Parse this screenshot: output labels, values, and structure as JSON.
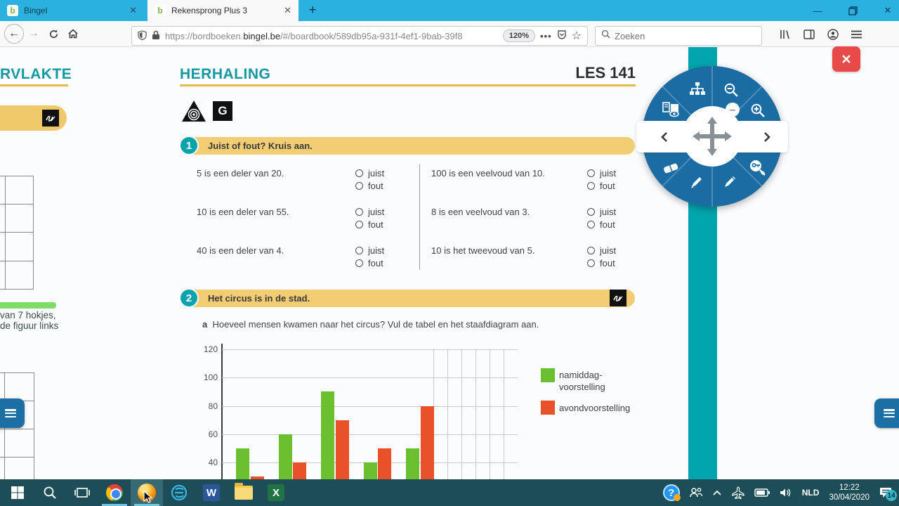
{
  "browser": {
    "tabs": [
      {
        "title": "Bingel"
      },
      {
        "title": "Rekensprong Plus 3"
      }
    ],
    "favicon_letter": "b",
    "new_tab_label": "+",
    "url": {
      "prefix": "https://bordboeken.",
      "domain": "bingel.be",
      "path": "/#/boardbook/589db95a-931f-4ef1-9bab-39f8"
    },
    "zoom_badge": "120%",
    "search_placeholder": "Zoeken"
  },
  "left_page": {
    "heading": "RVLAKTE",
    "note1": "van 7 hokjes,",
    "note2": "de figuur links"
  },
  "main": {
    "heading": "HERHALING",
    "lesson": "LES 141",
    "g_badge": "G",
    "ex1": {
      "number": "1",
      "title": "Juist of fout? Kruis aan.",
      "opt_true": "juist",
      "opt_false": "fout",
      "left_items": [
        "5 is een deler van 20.",
        "10 is een deler van 55.",
        "40 is een deler van 4."
      ],
      "right_items": [
        "100 is een veelvoud van 10.",
        "8 is een veelvoud van 3.",
        "10 is het tweevoud van 5."
      ]
    },
    "ex2": {
      "number": "2",
      "title": "Het circus is in de stad.",
      "item_label": "a",
      "item_text": "Hoeveel mensen kwamen naar het circus? Vul de tabel en het staafdiagram aan."
    }
  },
  "chart_data": {
    "type": "bar",
    "series": [
      {
        "name": "namiddag-voorstelling",
        "color": "#6cbf2e",
        "values": [
          50,
          60,
          90,
          40,
          50
        ]
      },
      {
        "name": "avondvoorstelling",
        "color": "#e9512b",
        "values": [
          30,
          40,
          70,
          50,
          80
        ]
      }
    ],
    "y_ticks": [
      120,
      100,
      80,
      60,
      40
    ],
    "ylim": [
      0,
      120
    ],
    "x_axis_labels_visible": false,
    "empty_fill_in_columns": 6,
    "grid": true,
    "legend_position": "right",
    "legend": {
      "s1_line1": "namiddag-",
      "s1_line2": "voorstelling",
      "s2": "avondvoorstelling"
    }
  },
  "colors": {
    "accent_teal": "#1598a2",
    "stripe_teal": "#00a5ad",
    "banner_yellow": "#f3cd74",
    "menu_blue": "#1c6ca4",
    "tabbar_cyan": "#2bb1e0",
    "taskbar": "#1d4e57",
    "close_red": "#e84a4a"
  },
  "taskbar": {
    "lang": "NLD",
    "time": "12:22",
    "date": "30/04/2020",
    "notification_count": "14"
  }
}
